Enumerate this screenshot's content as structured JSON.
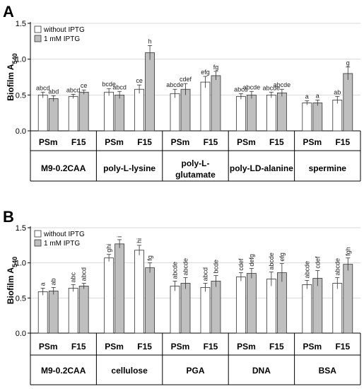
{
  "colors": {
    "without": "#ffffff",
    "with": "#bfbfbf",
    "grid": "#d9d9d9",
    "axis": "#000000"
  },
  "chart_data": [
    {
      "panel": "A",
      "type": "bar",
      "ylabel": "Biofilm A",
      "ylabel_sub": "540",
      "ylim": [
        0,
        1.5
      ],
      "yticks": [
        "0.0",
        "0.5",
        "1.0",
        "1.5"
      ],
      "grid": true,
      "legend_position": "top-left",
      "series": [
        {
          "name": "without IPTG",
          "color": "#ffffff"
        },
        {
          "name": "1 mM IPTG",
          "color": "#bfbfbf"
        }
      ],
      "groups": [
        {
          "name": "M9-0.2CAA",
          "bars": [
            {
              "strain": "PSm",
              "values": [
                0.5,
                0.45
              ],
              "errors": [
                0.04,
                0.04
              ],
              "labels": [
                "abcd",
                "abd"
              ]
            },
            {
              "strain": "F15",
              "values": [
                0.48,
                0.54
              ],
              "errors": [
                0.03,
                0.03
              ],
              "labels": [
                "abcd",
                "ce"
              ]
            }
          ]
        },
        {
          "name": "poly-L-lysine",
          "bars": [
            {
              "strain": "PSm",
              "values": [
                0.54,
                0.5
              ],
              "errors": [
                0.05,
                0.05
              ],
              "labels": [
                "bcde",
                "abcd"
              ]
            },
            {
              "strain": "F15",
              "values": [
                0.58,
                1.09
              ],
              "errors": [
                0.06,
                0.1
              ],
              "labels": [
                "ce",
                "h"
              ]
            }
          ]
        },
        {
          "name": "poly-L-glutamate",
          "bars": [
            {
              "strain": "PSm",
              "values": [
                0.52,
                0.58
              ],
              "errors": [
                0.06,
                0.08
              ],
              "labels": [
                "abcde",
                "cdef"
              ]
            },
            {
              "strain": "F15",
              "values": [
                0.68,
                0.77
              ],
              "errors": [
                0.08,
                0.06
              ],
              "labels": [
                "efg",
                "fg"
              ]
            }
          ]
        },
        {
          "name": "poly-LD-alanine",
          "bars": [
            {
              "strain": "PSm",
              "values": [
                0.48,
                0.5
              ],
              "errors": [
                0.04,
                0.05
              ],
              "labels": [
                "abcd",
                "abcde"
              ]
            },
            {
              "strain": "F15",
              "values": [
                0.5,
                0.53
              ],
              "errors": [
                0.04,
                0.05
              ],
              "labels": [
                "abcde",
                "abcde"
              ]
            }
          ]
        },
        {
          "name": "spermine",
          "bars": [
            {
              "strain": "PSm",
              "values": [
                0.39,
                0.39
              ],
              "errors": [
                0.03,
                0.04
              ],
              "labels": [
                "a",
                "a"
              ]
            },
            {
              "strain": "F15",
              "values": [
                0.43,
                0.8
              ],
              "errors": [
                0.05,
                0.09
              ],
              "labels": [
                "ab",
                "g"
              ]
            }
          ]
        }
      ]
    },
    {
      "panel": "B",
      "type": "bar",
      "ylabel": "Biofilm A",
      "ylabel_sub": "540",
      "ylim": [
        0,
        1.5
      ],
      "yticks": [
        "0.0",
        "0.5",
        "1.0",
        "1.5"
      ],
      "grid": true,
      "legend_position": "top-left",
      "series": [
        {
          "name": "without IPTG",
          "color": "#ffffff"
        },
        {
          "name": "1 mM IPTG",
          "color": "#bfbfbf"
        }
      ],
      "groups": [
        {
          "name": "M9-0.2CAA",
          "bars": [
            {
              "strain": "PSm",
              "values": [
                0.59,
                0.6
              ],
              "errors": [
                0.05,
                0.05
              ],
              "labels": [
                "a",
                "ab"
              ]
            },
            {
              "strain": "F15",
              "values": [
                0.64,
                0.67
              ],
              "errors": [
                0.05,
                0.04
              ],
              "labels": [
                "abc",
                "abcd"
              ]
            }
          ]
        },
        {
          "name": "cellulose",
          "bars": [
            {
              "strain": "PSm",
              "values": [
                1.07,
                1.27
              ],
              "errors": [
                0.05,
                0.06
              ],
              "labels": [
                "ghi",
                "i"
              ]
            },
            {
              "strain": "F15",
              "values": [
                1.18,
                0.93
              ],
              "errors": [
                0.07,
                0.07
              ],
              "labels": [
                "hi",
                "fg"
              ]
            }
          ]
        },
        {
          "name": "PGA",
          "bars": [
            {
              "strain": "PSm",
              "values": [
                0.67,
                0.71
              ],
              "errors": [
                0.07,
                0.08
              ],
              "labels": [
                "abcde",
                "abcde"
              ]
            },
            {
              "strain": "F15",
              "values": [
                0.65,
                0.74
              ],
              "errors": [
                0.06,
                0.08
              ],
              "labels": [
                "abcd",
                "bcde"
              ]
            }
          ]
        },
        {
          "name": "DNA",
          "bars": [
            {
              "strain": "PSm",
              "values": [
                0.8,
                0.85
              ],
              "errors": [
                0.06,
                0.07
              ],
              "labels": [
                "cdef",
                "defg"
              ]
            },
            {
              "strain": "F15",
              "values": [
                0.77,
                0.86
              ],
              "errors": [
                0.1,
                0.13
              ],
              "labels": [
                "abcde",
                "efg"
              ]
            }
          ]
        },
        {
          "name": "BSA",
          "bars": [
            {
              "strain": "PSm",
              "values": [
                0.69,
                0.78
              ],
              "errors": [
                0.06,
                0.11
              ],
              "labels": [
                "abcde",
                "cdef"
              ]
            },
            {
              "strain": "F15",
              "values": [
                0.71,
                0.98
              ],
              "errors": [
                0.08,
                0.09
              ],
              "labels": [
                "abcde",
                "fgh"
              ]
            }
          ]
        }
      ]
    }
  ]
}
